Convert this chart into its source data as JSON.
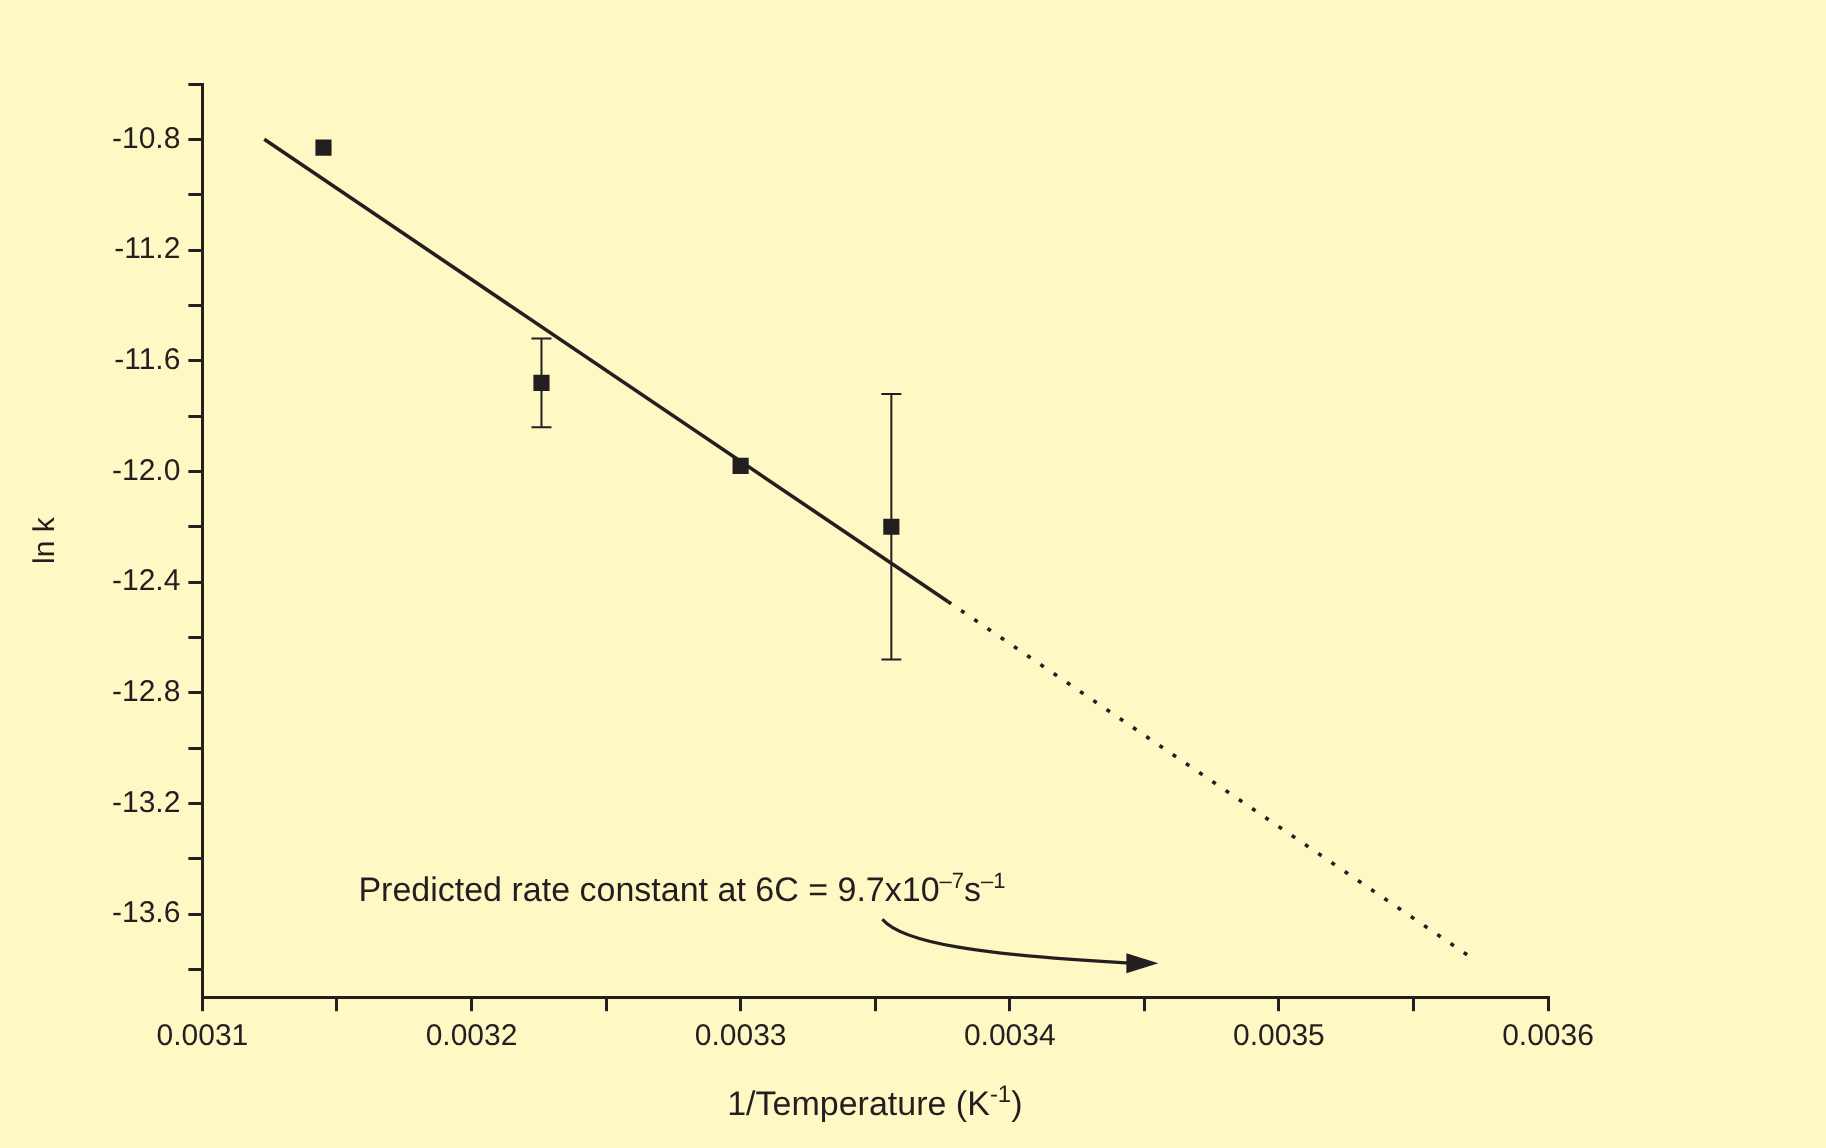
{
  "chart_data": {
    "type": "scatter",
    "xlabel": "1/Temperature (K$^{-1}$)",
    "ylabel": "ln k",
    "xlim": [
      0.0031,
      0.0036
    ],
    "xticks": [
      0.0031,
      {
        "value": 0.00315,
        "label": null
      },
      0.0032,
      {
        "value": 0.00325,
        "label": null
      },
      0.0033,
      {
        "value": 0.00335,
        "label": null
      },
      0.0034,
      {
        "value": 0.00345,
        "label": null
      },
      0.0035,
      {
        "value": 0.00355,
        "label": null
      },
      0.0036
    ],
    "ylim": [
      -13.9,
      -10.6
    ],
    "yticks": [
      {
        "value": -10.6,
        "label": null
      },
      {
        "value": -10.8,
        "label": "-10.8"
      },
      {
        "value": -11.0,
        "label": null
      },
      {
        "value": -11.2,
        "label": "-11.2"
      },
      {
        "value": -11.4,
        "label": null
      },
      {
        "value": -11.6,
        "label": "-11.6"
      },
      {
        "value": -11.8,
        "label": null
      },
      {
        "value": -12.0,
        "label": "-12.0"
      },
      {
        "value": -12.2,
        "label": null
      },
      {
        "value": -12.4,
        "label": "-12.4"
      },
      {
        "value": -12.6,
        "label": null
      },
      {
        "value": -12.8,
        "label": "-12.8"
      },
      {
        "value": -13.0,
        "label": null
      },
      {
        "value": -13.2,
        "label": "-13.2"
      },
      {
        "value": -13.4,
        "label": null
      },
      {
        "value": -13.6,
        "label": "-13.6"
      },
      {
        "value": -13.8,
        "label": null
      }
    ],
    "grid": false,
    "legend": false,
    "series": [
      {
        "type": "scatter",
        "color": "#231f20",
        "marker": "square",
        "x": [
          0.003145,
          0.003226,
          0.0033,
          0.003356
        ],
        "values": [
          -10.83,
          -11.68,
          -11.98,
          -12.2
        ],
        "errors": [
          null,
          0.16,
          null,
          0.48
        ]
      },
      {
        "type": "line",
        "color": "#231f20",
        "line_style": "solid",
        "x": [
          0.003123,
          0.003377
        ],
        "values": [
          -10.8,
          -12.47
        ]
      },
      {
        "type": "line",
        "color": "#231f20",
        "line_style": "dotted",
        "x": [
          0.003377,
          0.003572
        ],
        "values": [
          -12.47,
          -13.76
        ]
      }
    ],
    "annotations": [
      "Predicted rate constant at 6C = 9.7x10$^{–7}$s$^{–1}$"
    ]
  }
}
